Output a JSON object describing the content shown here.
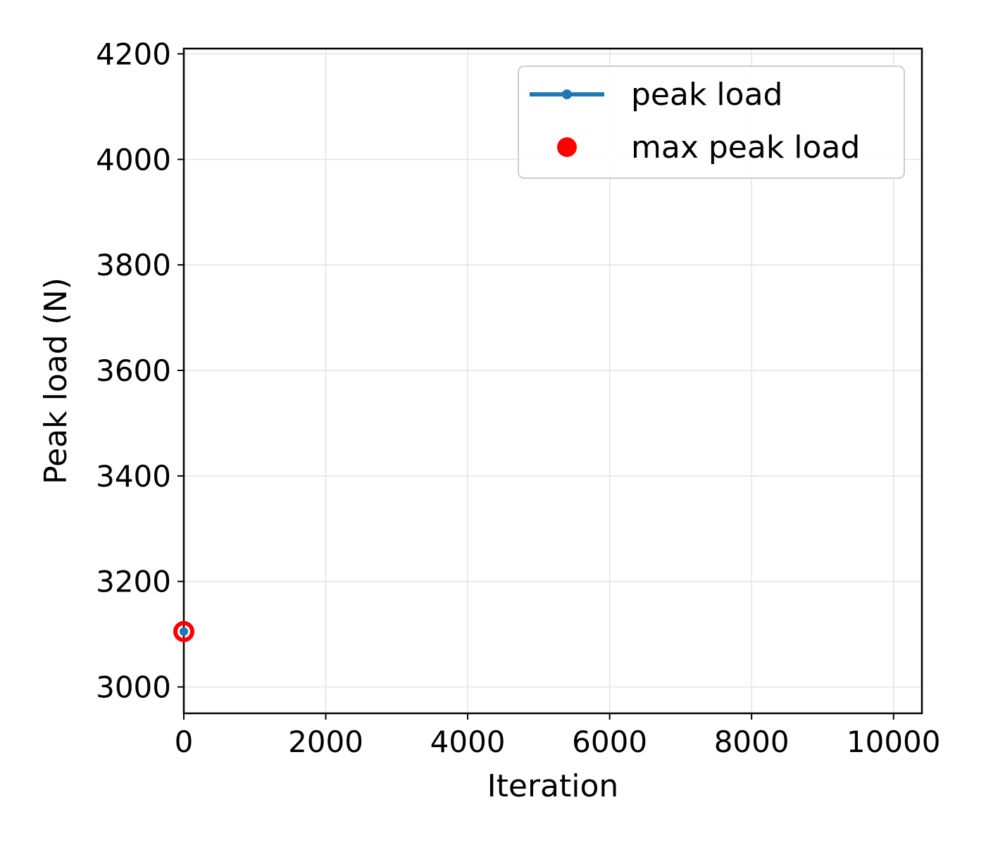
{
  "chart_data": {
    "type": "line",
    "title": "",
    "xlabel": "Iteration",
    "ylabel": "Peak load (N)",
    "xlim": [
      0,
      10400
    ],
    "ylim": [
      2950,
      4210
    ],
    "xticks": [
      0,
      2000,
      4000,
      6000,
      8000,
      10000
    ],
    "yticks": [
      3000,
      3200,
      3400,
      3600,
      3800,
      4000,
      4200
    ],
    "grid": true,
    "legend_position": "top-right",
    "series": [
      {
        "name": "peak load",
        "kind": "line-marker",
        "color": "#1f77b4",
        "x": [
          0
        ],
        "y": [
          3105
        ]
      },
      {
        "name": "max peak load",
        "kind": "scatter",
        "color": "#ff0000",
        "x": [
          0
        ],
        "y": [
          3105
        ]
      }
    ]
  }
}
